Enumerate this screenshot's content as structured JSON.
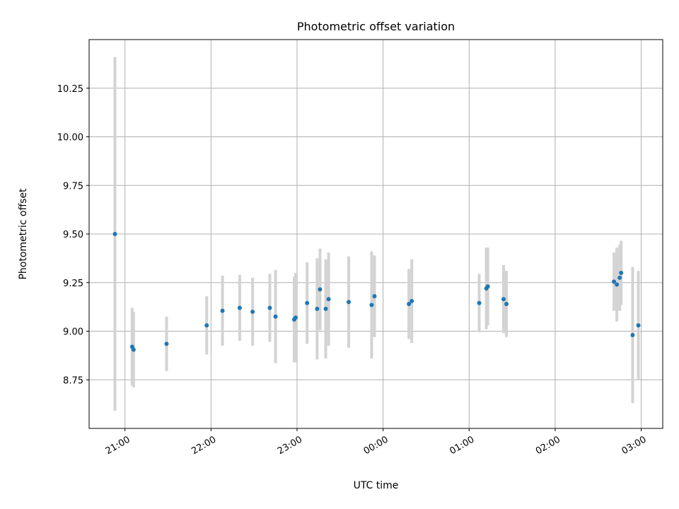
{
  "chart_data": {
    "type": "scatter",
    "title": "Photometric offset variation",
    "xlabel": "UTC time",
    "ylabel": "Photometric offset",
    "x_ticks": [
      "21:00",
      "22:00",
      "23:00",
      "00:00",
      "01:00",
      "02:00",
      "03:00"
    ],
    "x_tick_hours": [
      21,
      22,
      23,
      24,
      25,
      26,
      27
    ],
    "xlim": [
      "20:35",
      "03:15"
    ],
    "y_ticks": [
      "8.75",
      "9.00",
      "9.25",
      "9.50",
      "9.75",
      "10.00",
      "10.25"
    ],
    "ylim": [
      8.5,
      10.5
    ],
    "grid": true,
    "series": [
      {
        "marker_color": "#1f77b4",
        "errorbar_color": "#d3d3d3",
        "points": [
          {
            "time": "20:53",
            "y": 9.5,
            "err": 0.91
          },
          {
            "time": "21:05",
            "y": 8.92,
            "err": 0.2
          },
          {
            "time": "21:06",
            "y": 8.905,
            "err": 0.195
          },
          {
            "time": "21:29",
            "y": 8.935,
            "err": 0.14
          },
          {
            "time": "21:57",
            "y": 9.03,
            "err": 0.15
          },
          {
            "time": "22:08",
            "y": 9.105,
            "err": 0.18
          },
          {
            "time": "22:20",
            "y": 9.12,
            "err": 0.17
          },
          {
            "time": "22:29",
            "y": 9.1,
            "err": 0.175
          },
          {
            "time": "22:41",
            "y": 9.12,
            "err": 0.175
          },
          {
            "time": "22:45",
            "y": 9.075,
            "err": 0.24
          },
          {
            "time": "22:58",
            "y": 9.06,
            "err": 0.22
          },
          {
            "time": "22:59",
            "y": 9.07,
            "err": 0.23
          },
          {
            "time": "23:07",
            "y": 9.145,
            "err": 0.21
          },
          {
            "time": "23:14",
            "y": 9.115,
            "err": 0.26
          },
          {
            "time": "23:16",
            "y": 9.215,
            "err": 0.21
          },
          {
            "time": "23:20",
            "y": 9.115,
            "err": 0.255
          },
          {
            "time": "23:22",
            "y": 9.165,
            "err": 0.24
          },
          {
            "time": "23:36",
            "y": 9.15,
            "err": 0.235
          },
          {
            "time": "23:52",
            "y": 9.135,
            "err": 0.275
          },
          {
            "time": "23:54",
            "y": 9.18,
            "err": 0.21
          },
          {
            "time": "00:18",
            "y": 9.14,
            "err": 0.18
          },
          {
            "time": "00:20",
            "y": 9.155,
            "err": 0.215
          },
          {
            "time": "01:07",
            "y": 9.145,
            "err": 0.15
          },
          {
            "time": "01:12",
            "y": 9.22,
            "err": 0.21
          },
          {
            "time": "01:13",
            "y": 9.23,
            "err": 0.2
          },
          {
            "time": "01:24",
            "y": 9.165,
            "err": 0.175
          },
          {
            "time": "01:26",
            "y": 9.14,
            "err": 0.17
          },
          {
            "time": "02:41",
            "y": 9.255,
            "err": 0.15
          },
          {
            "time": "02:43",
            "y": 9.24,
            "err": 0.19
          },
          {
            "time": "02:45",
            "y": 9.275,
            "err": 0.17
          },
          {
            "time": "02:46",
            "y": 9.3,
            "err": 0.165
          },
          {
            "time": "02:54",
            "y": 8.98,
            "err": 0.35
          },
          {
            "time": "02:58",
            "y": 9.03,
            "err": 0.28
          }
        ]
      }
    ]
  }
}
